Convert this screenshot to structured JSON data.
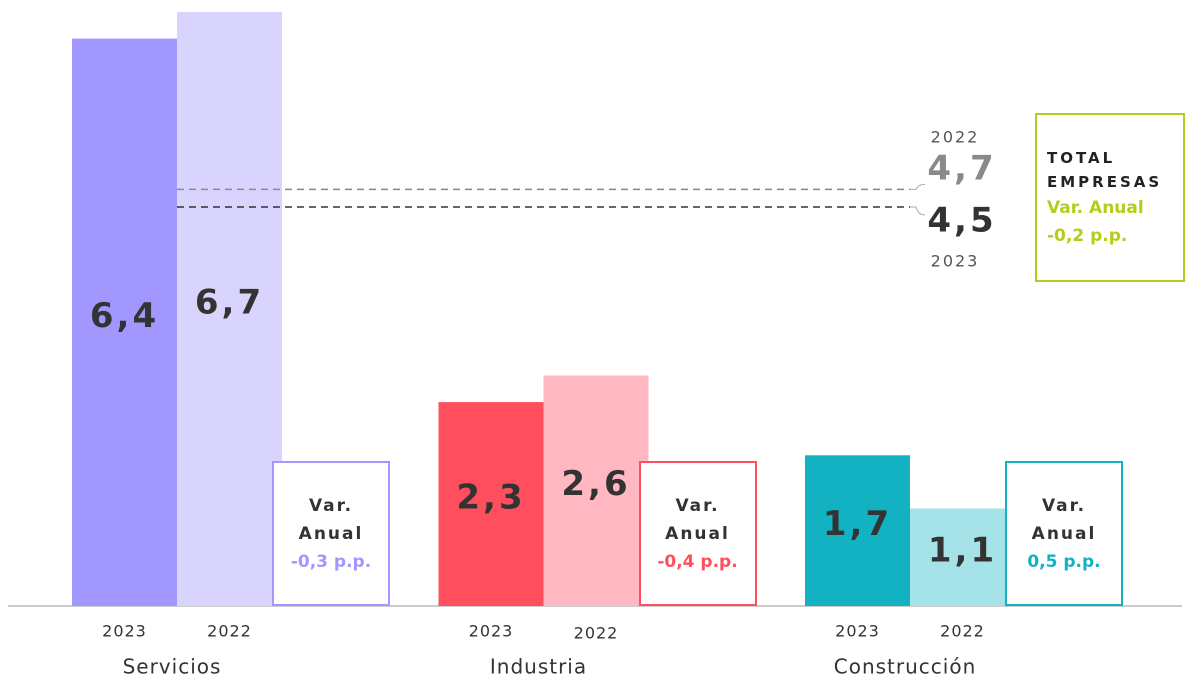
{
  "chart_data": {
    "type": "bar",
    "categories": [
      "Servicios",
      "Industria",
      "Construcción"
    ],
    "series": [
      {
        "name": "2023",
        "colors": [
          "#a197ff",
          "#ff4f5f",
          "#13b2c3"
        ],
        "values": [
          6.4,
          2.3,
          1.7
        ],
        "value_labels": [
          "6,4",
          "2,3",
          "1,7"
        ]
      },
      {
        "name": "2022",
        "colors": [
          "#d9d4fd",
          "#ffb7c2",
          "#a6e3e8"
        ],
        "values": [
          6.7,
          2.6,
          1.1
        ],
        "value_labels": [
          "6,7",
          "2,6",
          "1,1"
        ]
      }
    ],
    "variation_label": "Var. Anual",
    "variations": [
      "-0,3 p.p.",
      "-0,4 p.p.",
      "0,5 p.p."
    ],
    "reference_lines": [
      {
        "name": "2022",
        "value": 4.7,
        "value_label": "4,7",
        "color": "#8a8a8a"
      },
      {
        "name": "2023",
        "value": 4.5,
        "value_label": "4,5",
        "color": "#333333"
      }
    ],
    "total": {
      "title": "TOTAL EMPRESAS",
      "variation_label": "Var. Anual",
      "variation": "-0,2 p.p.",
      "color": "#b7cc1a"
    }
  }
}
